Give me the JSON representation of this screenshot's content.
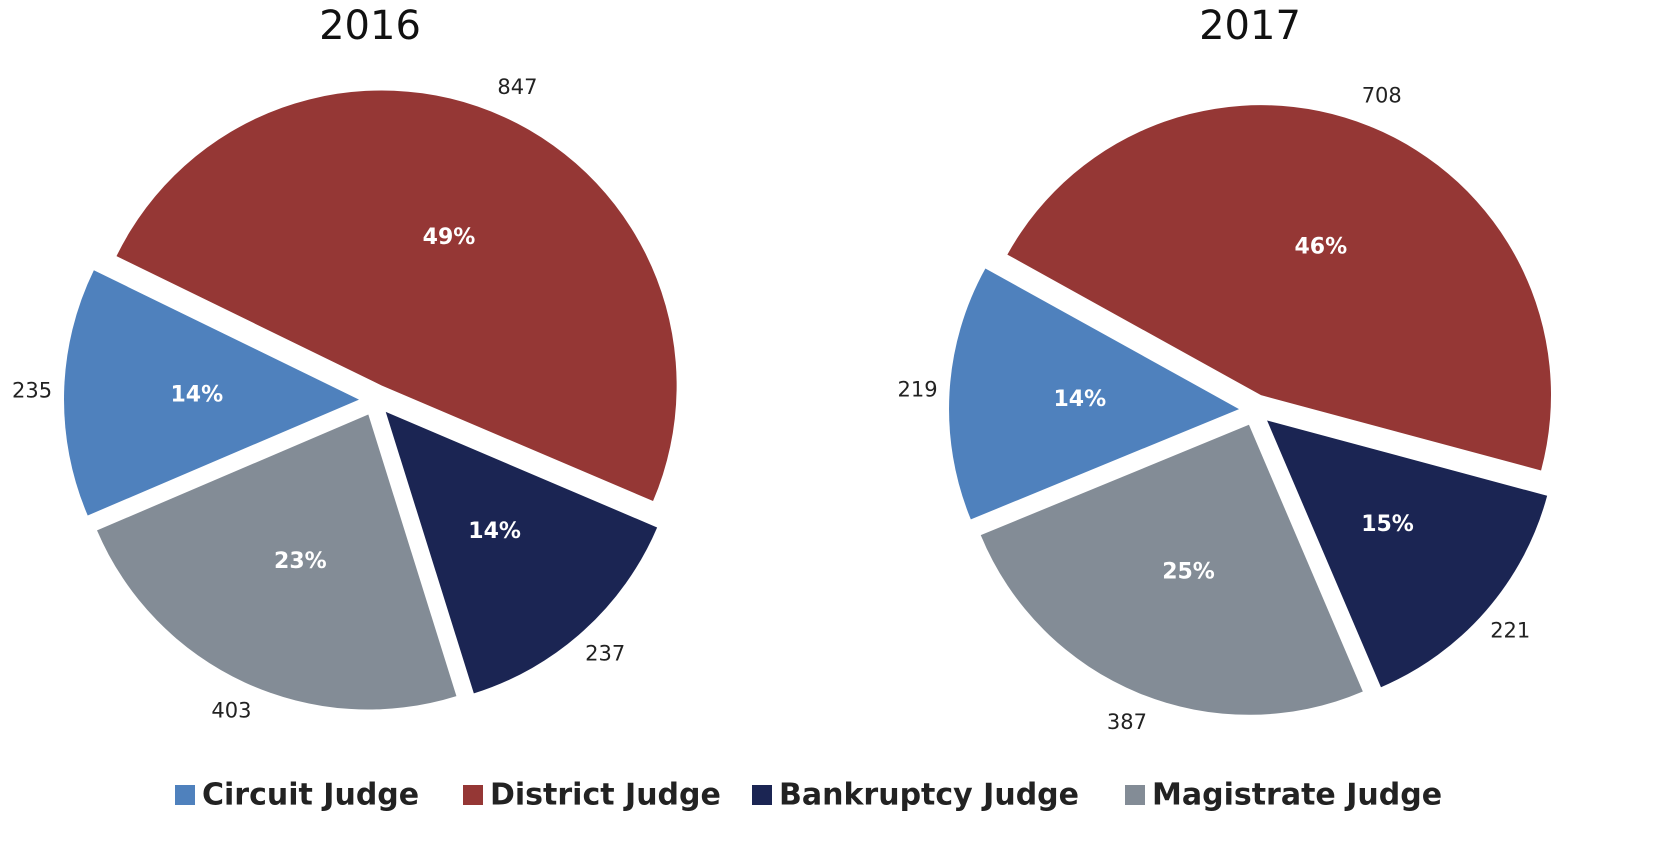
{
  "chart_data": [
    {
      "type": "pie",
      "title": "2016",
      "categories": [
        "District Judge",
        "Bankruptcy Judge",
        "Magistrate Judge",
        "Circuit Judge"
      ],
      "values": [
        847,
        237,
        403,
        235
      ],
      "percent_labels": [
        "49%",
        "14%",
        "23%",
        "14%"
      ],
      "colors": [
        "#953735",
        "#1b2553",
        "#838c96",
        "#4f81bd"
      ]
    },
    {
      "type": "pie",
      "title": "2017",
      "categories": [
        "District Judge",
        "Bankruptcy Judge",
        "Magistrate Judge",
        "Circuit Judge"
      ],
      "values": [
        708,
        221,
        387,
        219
      ],
      "percent_labels": [
        "46%",
        "15%",
        "25%",
        "14%"
      ],
      "colors": [
        "#953735",
        "#1b2553",
        "#838c96",
        "#4f81bd"
      ]
    }
  ],
  "legend": {
    "order": [
      3,
      0,
      1,
      2
    ]
  }
}
